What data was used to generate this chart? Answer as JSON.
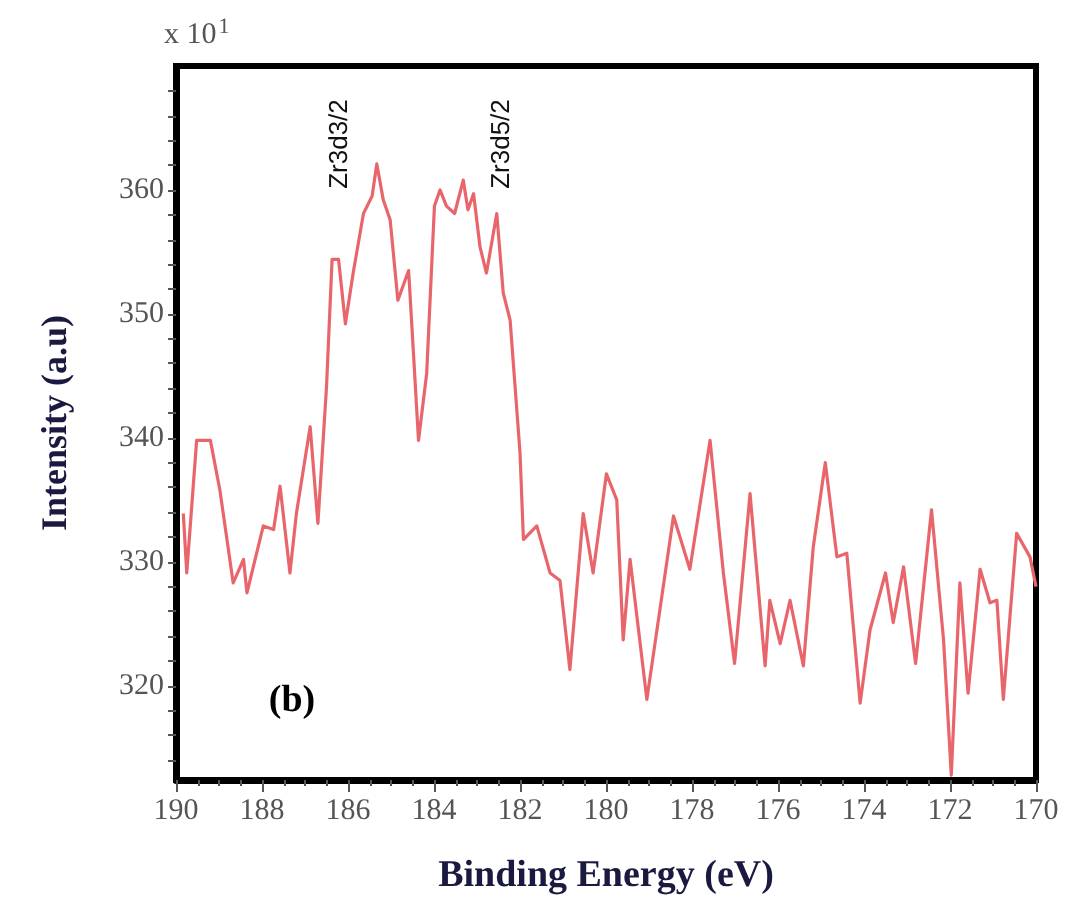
{
  "chart_data": {
    "type": "line",
    "xlabel": "Binding Energy (eV)",
    "ylabel": "Intensity (a.u)",
    "annotations": [
      "Zr3d3/2",
      "Zr3d5/2",
      "(b)",
      "x 10$^{1}$"
    ],
    "x": [
      189.83,
      189.75,
      189.52,
      189.2,
      188.98,
      188.67,
      188.43,
      188.35,
      187.97,
      187.73,
      187.58,
      187.35,
      187.2,
      186.88,
      186.7,
      186.5,
      186.37,
      186.22,
      186.06,
      185.88,
      185.64,
      185.44,
      185.33,
      185.18,
      185.02,
      184.84,
      184.59,
      184.36,
      184.17,
      183.99,
      183.86,
      183.71,
      183.52,
      183.32,
      183.21,
      183.08,
      182.93,
      182.78,
      182.54,
      182.39,
      182.23,
      182.0,
      181.92,
      181.61,
      181.3,
      181.07,
      180.84,
      180.53,
      180.3,
      179.99,
      179.75,
      179.6,
      179.44,
      179.05,
      178.43,
      178.05,
      177.58,
      177.27,
      177.01,
      176.65,
      176.3,
      176.19,
      175.95,
      175.72,
      175.41,
      175.18,
      174.9,
      174.63,
      174.4,
      174.09,
      173.86,
      173.5,
      173.32,
      173.08,
      172.8,
      172.43,
      172.15,
      171.97,
      171.77,
      171.58,
      171.3,
      171.07,
      170.91,
      170.76,
      170.45,
      170.14,
      170.0
    ],
    "series": [
      {
        "color": "#e8666b",
        "values": [
          333.9,
          329.1,
          339.8,
          339.8,
          335.8,
          328.3,
          330.2,
          327.5,
          332.9,
          332.6,
          336.1,
          329.1,
          333.9,
          340.9,
          333.1,
          344.1,
          354.4,
          354.4,
          349.2,
          353.3,
          358.1,
          359.5,
          362.1,
          359.2,
          357.6,
          351.1,
          353.5,
          339.8,
          345.2,
          358.7,
          360,
          358.7,
          358.1,
          360.8,
          358.4,
          359.7,
          355.4,
          353.3,
          358.1,
          351.7,
          349.5,
          338.8,
          331.8,
          332.9,
          329.1,
          328.5,
          321.3,
          333.9,
          329.1,
          337.1,
          335,
          323.7,
          330.2,
          318.9,
          333.7,
          329.4,
          339.8,
          329.1,
          321.8,
          335.5,
          321.6,
          326.9,
          323.4,
          326.9,
          321.6,
          331.2,
          338,
          330.4,
          330.7,
          318.6,
          324.5,
          329.1,
          325.1,
          329.6,
          321.8,
          334.2,
          323.7,
          312.8,
          328.3,
          319.4,
          329.4,
          326.7,
          326.9,
          318.9,
          332.3,
          330.4,
          328
        ]
      }
    ],
    "xlim": [
      190,
      170
    ],
    "xticks": [
      190,
      188,
      186,
      184,
      182,
      180,
      178,
      176,
      174,
      172,
      170
    ],
    "ylim": [
      312.4,
      370
    ],
    "yticks": [
      {
        "value": 314,
        "label": null
      },
      {
        "value": 316,
        "label": null
      },
      {
        "value": 318,
        "label": null
      },
      320,
      {
        "value": 322,
        "label": null
      },
      {
        "value": 324,
        "label": null
      },
      {
        "value": 326,
        "label": null
      },
      {
        "value": 328,
        "label": null
      },
      330,
      {
        "value": 332,
        "label": null
      },
      {
        "value": 334,
        "label": null
      },
      {
        "value": 336,
        "label": null
      },
      {
        "value": 338,
        "label": null
      },
      340,
      {
        "value": 342,
        "label": null
      },
      {
        "value": 344,
        "label": null
      },
      {
        "value": 346,
        "label": null
      },
      {
        "value": 348,
        "label": null
      },
      350,
      {
        "value": 352,
        "label": null
      },
      {
        "value": 354,
        "label": null
      },
      {
        "value": 356,
        "label": null
      },
      {
        "value": 358,
        "label": null
      },
      360,
      {
        "value": 362,
        "label": null
      },
      {
        "value": 364,
        "label": null
      },
      {
        "value": 366,
        "label": null
      },
      {
        "value": 368,
        "label": null
      }
    ],
    "grid": false,
    "marker": "none",
    "line_style": "solid"
  }
}
